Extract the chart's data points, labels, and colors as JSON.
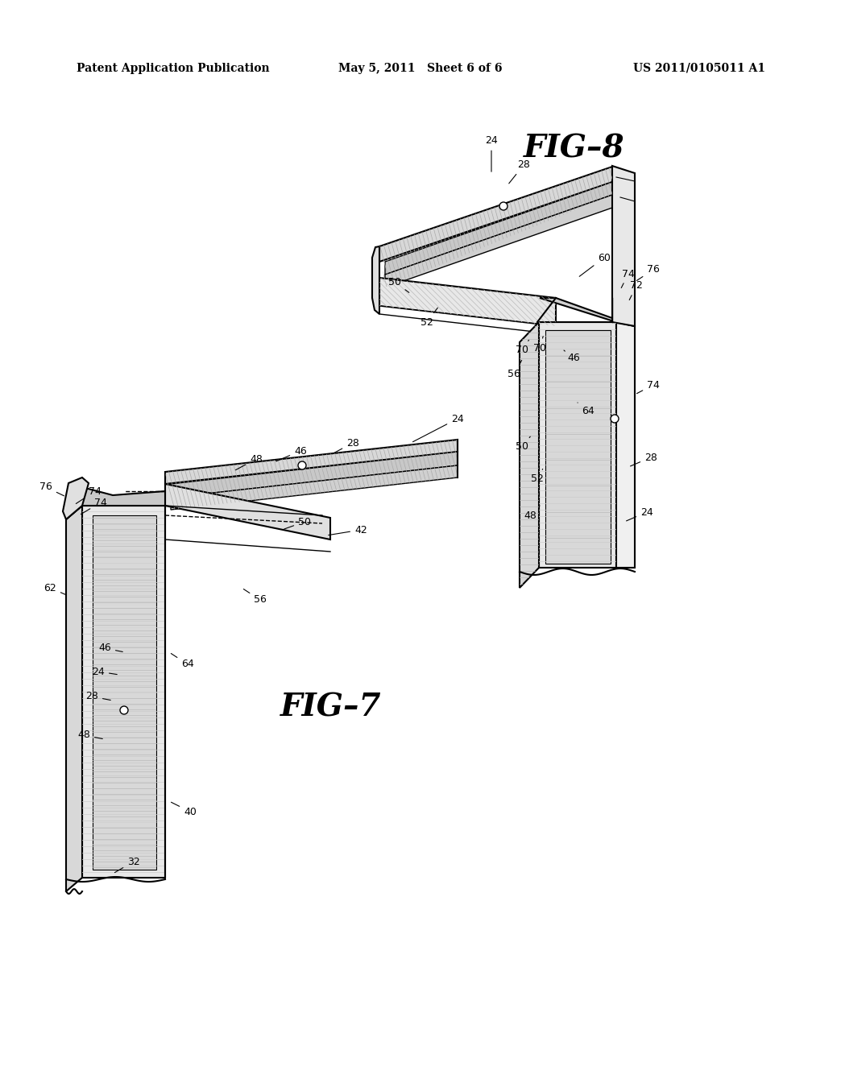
{
  "background_color": "#ffffff",
  "header_left": "Patent Application Publication",
  "header_center": "May 5, 2011   Sheet 6 of 6",
  "header_right": "US 2011/0105011 A1",
  "fig7_label": "FIG–7",
  "fig8_label": "FIG–8",
  "line_color": "#000000",
  "gray_light": "#cccccc",
  "gray_mid": "#aaaaaa",
  "gray_dark": "#888888"
}
